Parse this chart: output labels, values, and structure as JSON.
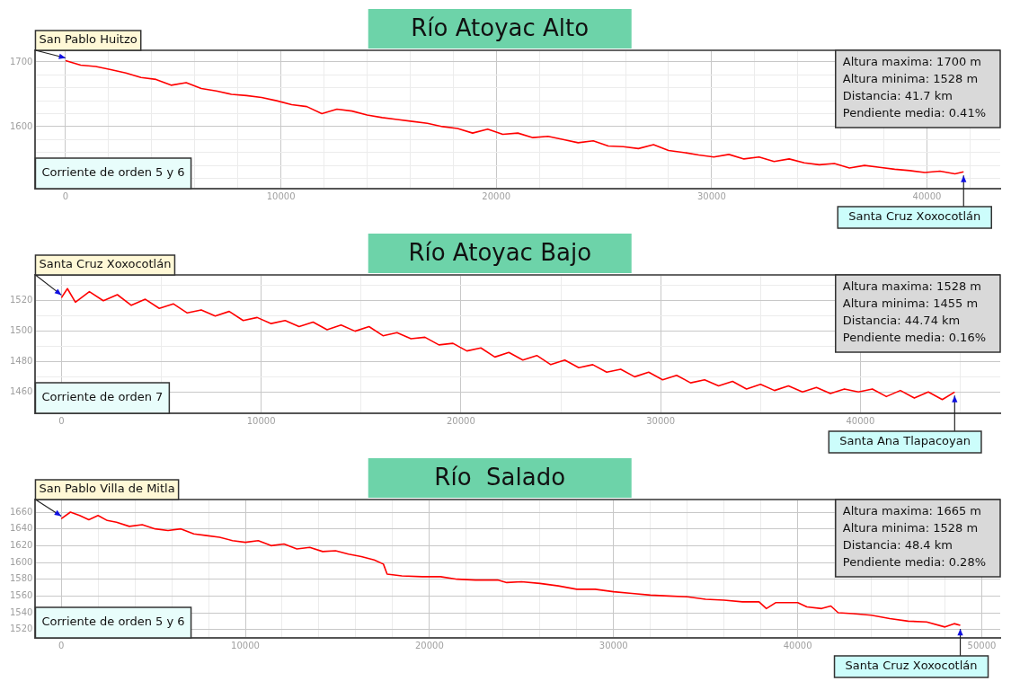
{
  "chart_data": [
    {
      "type": "line",
      "title": "Río Atoyac Alto",
      "grid": true,
      "marker": "none",
      "annotations": [
        {
          "text": "San Pablo Huitzo",
          "x": 0,
          "y": 1702
        },
        {
          "text": "Santa Cruz Xoxocotlán",
          "x": 41700,
          "y": 1530
        },
        "Corriente de orden 5 y 6",
        "Altura maxima: 1700 m",
        "Altura minima: 1528 m",
        "Distancia: 41.7 km",
        "Pendiente media: 0.41%"
      ],
      "x": [
        0,
        700,
        1400,
        2100,
        2800,
        3500,
        4200,
        4900,
        5600,
        6300,
        7000,
        7700,
        8400,
        9100,
        9800,
        10500,
        11200,
        11900,
        12600,
        13300,
        14000,
        14700,
        15400,
        16100,
        16800,
        17500,
        18200,
        18900,
        19600,
        20300,
        21000,
        21700,
        22400,
        23100,
        23800,
        24500,
        25200,
        25900,
        26600,
        27300,
        28000,
        28700,
        29400,
        30100,
        30800,
        31500,
        32200,
        32900,
        33600,
        34300,
        35000,
        35700,
        36400,
        37100,
        37800,
        38500,
        39200,
        39900,
        40600,
        41300,
        41700
      ],
      "series": [
        {
          "color": "#ff0000",
          "values": [
            1702,
            1695,
            1693,
            1688,
            1683,
            1676,
            1673,
            1664,
            1668,
            1659,
            1655,
            1650,
            1648,
            1645,
            1640,
            1634,
            1631,
            1620,
            1627,
            1624,
            1618,
            1614,
            1611,
            1608,
            1605,
            1600,
            1597,
            1590,
            1596,
            1588,
            1590,
            1583,
            1585,
            1580,
            1575,
            1578,
            1570,
            1569,
            1566,
            1572,
            1563,
            1560,
            1556,
            1553,
            1557,
            1550,
            1553,
            1546,
            1550,
            1544,
            1541,
            1543,
            1536,
            1540,
            1537,
            1534,
            1532,
            1529,
            1531,
            1527,
            1530
          ]
        }
      ],
      "xlim": [
        -1400,
        43400
      ],
      "ylim": [
        1504,
        1718
      ],
      "xticks": [
        {
          "value": 0,
          "label": "0"
        },
        {
          "value": 2000,
          "label": null
        },
        {
          "value": 4000,
          "label": null
        },
        {
          "value": 6000,
          "label": null
        },
        {
          "value": 8000,
          "label": null
        },
        {
          "value": 10000,
          "label": "10000"
        },
        {
          "value": 12000,
          "label": null
        },
        {
          "value": 14000,
          "label": null
        },
        {
          "value": 16000,
          "label": null
        },
        {
          "value": 18000,
          "label": null
        },
        {
          "value": 20000,
          "label": "20000"
        },
        {
          "value": 22000,
          "label": null
        },
        {
          "value": 24000,
          "label": null
        },
        {
          "value": 26000,
          "label": null
        },
        {
          "value": 28000,
          "label": null
        },
        {
          "value": 30000,
          "label": "30000"
        },
        {
          "value": 32000,
          "label": null
        },
        {
          "value": 34000,
          "label": null
        },
        {
          "value": 36000,
          "label": null
        },
        {
          "value": 38000,
          "label": null
        },
        {
          "value": 40000,
          "label": "40000"
        },
        {
          "value": 42000,
          "label": null
        }
      ],
      "yticks": [
        {
          "value": 1520,
          "label": null
        },
        {
          "value": 1540,
          "label": null
        },
        {
          "value": 1560,
          "label": null
        },
        {
          "value": 1580,
          "label": null
        },
        {
          "value": 1600,
          "label": "1600"
        },
        {
          "value": 1620,
          "label": null
        },
        {
          "value": 1640,
          "label": null
        },
        {
          "value": 1660,
          "label": null
        },
        {
          "value": 1680,
          "label": null
        },
        {
          "value": 1700,
          "label": "1700"
        }
      ]
    },
    {
      "type": "line",
      "title": "Río Atoyac Bajo",
      "grid": true,
      "marker": "none",
      "annotations": [
        {
          "text": "Santa Cruz Xoxocotlán",
          "x": 0,
          "y": 1522
        },
        {
          "text": "Santa Ana Tlapacoyan",
          "x": 44720,
          "y": 1460
        },
        "Corriente de orden 7",
        "Altura maxima: 1528 m",
        "Altura minima: 1455 m",
        "Distancia: 44.74 km",
        "Pendiente media: 0.16%"
      ],
      "x": [
        0,
        300,
        700,
        1400,
        2100,
        2800,
        3500,
        4200,
        4900,
        5600,
        6300,
        7000,
        7700,
        8400,
        9100,
        9800,
        10500,
        11200,
        11900,
        12600,
        13300,
        14000,
        14700,
        15400,
        16100,
        16800,
        17500,
        18200,
        18900,
        19600,
        20300,
        21000,
        21700,
        22400,
        23100,
        23800,
        24500,
        25200,
        25900,
        26600,
        27300,
        28000,
        28700,
        29400,
        30100,
        30800,
        31500,
        32200,
        32900,
        33600,
        34300,
        35000,
        35700,
        36400,
        37100,
        37800,
        38500,
        39200,
        39900,
        40600,
        41300,
        42000,
        42700,
        43400,
        44100,
        44720
      ],
      "series": [
        {
          "color": "#ff0000",
          "values": [
            1522,
            1528,
            1519,
            1526,
            1520,
            1524,
            1517,
            1521,
            1515,
            1518,
            1512,
            1514,
            1510,
            1513,
            1507,
            1509,
            1505,
            1507,
            1503,
            1506,
            1501,
            1504,
            1500,
            1503,
            1497,
            1499,
            1495,
            1496,
            1491,
            1492,
            1487,
            1489,
            1483,
            1486,
            1481,
            1484,
            1478,
            1481,
            1476,
            1478,
            1473,
            1475,
            1470,
            1473,
            1468,
            1471,
            1466,
            1468,
            1464,
            1467,
            1462,
            1465,
            1461,
            1464,
            1460,
            1463,
            1459,
            1462,
            1460,
            1462,
            1457,
            1461,
            1456,
            1460,
            1455,
            1460
          ]
        }
      ],
      "xlim": [
        -1300,
        47000
      ],
      "ylim": [
        1446,
        1537
      ],
      "xticks": [
        {
          "value": 0,
          "label": "0"
        },
        {
          "value": 5000,
          "label": null
        },
        {
          "value": 10000,
          "label": "10000"
        },
        {
          "value": 15000,
          "label": null
        },
        {
          "value": 20000,
          "label": "20000"
        },
        {
          "value": 25000,
          "label": null
        },
        {
          "value": 30000,
          "label": "30000"
        },
        {
          "value": 35000,
          "label": null
        },
        {
          "value": 40000,
          "label": "40000"
        },
        {
          "value": 45000,
          "label": null
        }
      ],
      "yticks": [
        {
          "value": 1460,
          "label": "1460"
        },
        {
          "value": 1470,
          "label": null
        },
        {
          "value": 1480,
          "label": "1480"
        },
        {
          "value": 1490,
          "label": null
        },
        {
          "value": 1500,
          "label": "1500"
        },
        {
          "value": 1510,
          "label": null
        },
        {
          "value": 1520,
          "label": "1520"
        },
        {
          "value": 1530,
          "label": null
        }
      ]
    },
    {
      "type": "line",
      "title": "Río  Salado",
      "grid": true,
      "marker": "none",
      "annotations": [
        {
          "text": "San Pablo Villa de Mitla",
          "x": 0,
          "y": 1652
        },
        {
          "text": "Santa Cruz Xoxocotlán",
          "x": 48830,
          "y": 1525
        },
        "Corriente de orden 5 y 6",
        "Altura maxima: 1665 m",
        "Altura minima: 1528 m",
        "Distancia: 48.4 km",
        "Pendiente media: 0.28%"
      ],
      "x": [
        0,
        500,
        1000,
        1500,
        2000,
        2500,
        3000,
        3700,
        4400,
        5100,
        5800,
        6500,
        7200,
        7900,
        8600,
        9300,
        10000,
        10700,
        11400,
        12100,
        12800,
        13500,
        14200,
        14900,
        15600,
        16300,
        17000,
        17500,
        17700,
        18500,
        19600,
        20600,
        21500,
        22500,
        23700,
        24200,
        25000,
        26000,
        27000,
        28000,
        29000,
        30000,
        31000,
        32000,
        33000,
        34000,
        35000,
        36000,
        37000,
        37900,
        38300,
        38800,
        40000,
        40500,
        41300,
        41800,
        42200,
        43000,
        44000,
        45000,
        46000,
        47000,
        48000,
        48500,
        48830
      ],
      "series": [
        {
          "color": "#ff0000",
          "values": [
            1652,
            1660,
            1656,
            1651,
            1656,
            1650,
            1648,
            1643,
            1645,
            1640,
            1638,
            1640,
            1634,
            1632,
            1630,
            1626,
            1624,
            1626,
            1620,
            1622,
            1616,
            1618,
            1613,
            1614,
            1610,
            1607,
            1603,
            1598,
            1586,
            1584,
            1583,
            1583,
            1580,
            1579,
            1579,
            1576,
            1577,
            1575,
            1572,
            1568,
            1568,
            1565,
            1563,
            1561,
            1560,
            1559,
            1556,
            1555,
            1553,
            1553,
            1545,
            1552,
            1552,
            1547,
            1545,
            1548,
            1540,
            1539,
            1537,
            1533,
            1530,
            1529,
            1523,
            1527,
            1525
          ]
        }
      ],
      "xlim": [
        -1400,
        51000
      ],
      "ylim": [
        1510,
        1675
      ],
      "xticks": [
        {
          "value": 0,
          "label": "0"
        },
        {
          "value": 2000,
          "label": null
        },
        {
          "value": 4000,
          "label": null
        },
        {
          "value": 6000,
          "label": null
        },
        {
          "value": 8000,
          "label": null
        },
        {
          "value": 10000,
          "label": "10000"
        },
        {
          "value": 12000,
          "label": null
        },
        {
          "value": 14000,
          "label": null
        },
        {
          "value": 16000,
          "label": null
        },
        {
          "value": 18000,
          "label": null
        },
        {
          "value": 20000,
          "label": "20000"
        },
        {
          "value": 22000,
          "label": null
        },
        {
          "value": 24000,
          "label": null
        },
        {
          "value": 26000,
          "label": null
        },
        {
          "value": 28000,
          "label": null
        },
        {
          "value": 30000,
          "label": "30000"
        },
        {
          "value": 32000,
          "label": null
        },
        {
          "value": 34000,
          "label": null
        },
        {
          "value": 36000,
          "label": null
        },
        {
          "value": 38000,
          "label": null
        },
        {
          "value": 40000,
          "label": "40000"
        },
        {
          "value": 42000,
          "label": null
        },
        {
          "value": 44000,
          "label": null
        },
        {
          "value": 46000,
          "label": null
        },
        {
          "value": 48000,
          "label": null
        },
        {
          "value": 50000,
          "label": "50000"
        }
      ],
      "yticks": [
        1520,
        1540,
        1560,
        1580,
        1600,
        1620,
        1640,
        1660
      ]
    }
  ]
}
